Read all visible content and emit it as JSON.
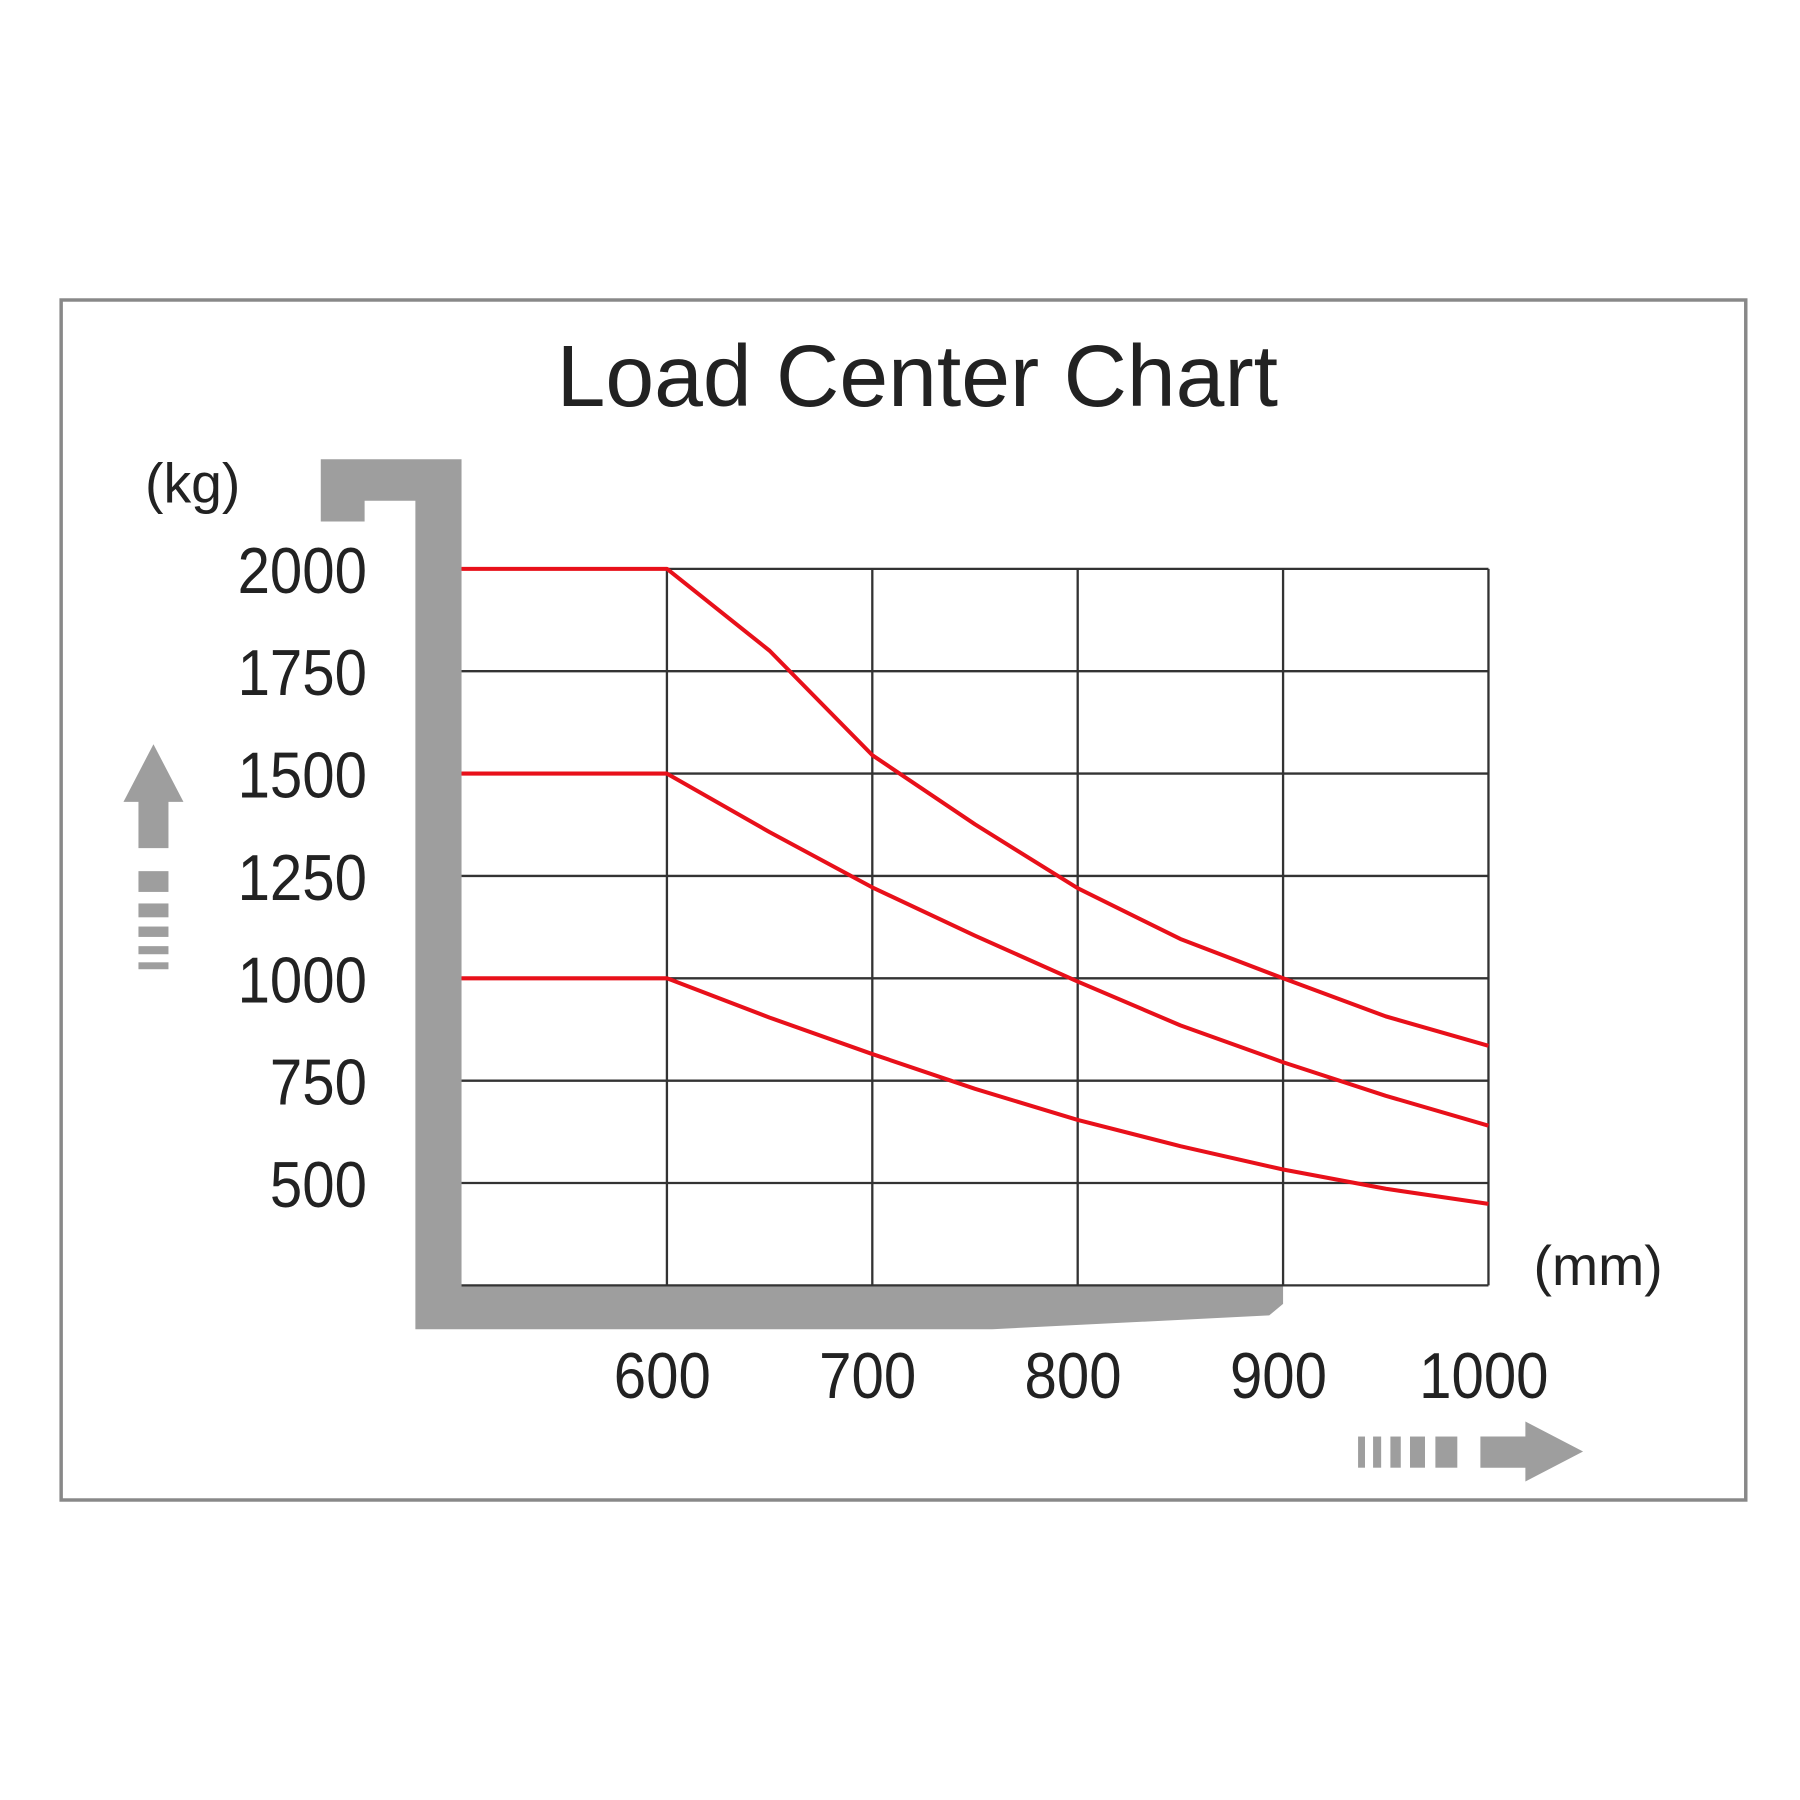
{
  "chart_data": {
    "type": "line",
    "title": "Load Center Chart",
    "y_label": "(kg)",
    "x_label": "(mm)",
    "x": [
      500,
      600,
      650,
      700,
      750,
      800,
      850,
      900,
      950,
      1000
    ],
    "series": [
      {
        "color": "#e8101a",
        "values": [
          2000,
          2000,
          1800,
          1545,
          1376,
          1220,
          1096,
          1000,
          907,
          835
        ]
      },
      {
        "color": "#e8101a",
        "values": [
          1500,
          1500,
          1357,
          1222,
          1104,
          992,
          885,
          795,
          713,
          640
        ]
      },
      {
        "color": "#e8101a",
        "values": [
          1000,
          1000,
          904,
          815,
          730,
          654,
          590,
          533,
          486,
          449
        ]
      }
    ],
    "xlim": [
      500,
      1000
    ],
    "xticks": [
      600,
      700,
      800,
      900,
      1000
    ],
    "ylim": [
      250,
      2000
    ],
    "yticks": [
      500,
      750,
      1000,
      1250,
      1500,
      1750,
      2000
    ],
    "grid": true
  }
}
